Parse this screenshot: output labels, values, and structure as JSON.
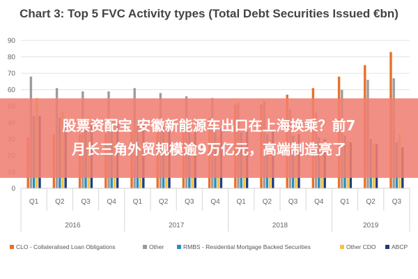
{
  "chart_data": {
    "type": "bar",
    "title": "Chart 3: Top 5 FVC Activity types (Total Debt Securities Issued €bn)",
    "ylim": [
      0,
      90
    ],
    "yticks": [
      0,
      10,
      20,
      30,
      40,
      50,
      60,
      70,
      80,
      90
    ],
    "grid": true,
    "legend_position": "bottom",
    "categories": [
      "Q1",
      "Q2",
      "Q3",
      "Q4",
      "Q1",
      "Q2",
      "Q3",
      "Q4",
      "Q1",
      "Q2",
      "Q3",
      "Q4",
      "Q1",
      "Q2",
      "Q3"
    ],
    "groups": [
      {
        "label": "2016",
        "start": 0,
        "count": 4
      },
      {
        "label": "2017",
        "start": 4,
        "count": 4
      },
      {
        "label": "2018",
        "start": 8,
        "count": 4
      },
      {
        "label": "2019",
        "start": 12,
        "count": 3
      }
    ],
    "series": [
      {
        "name": "CLO - Collateralised Loan Obligations",
        "color": "#e8702a",
        "values": [
          31,
          33,
          33,
          34,
          35,
          37,
          40,
          43,
          51,
          51,
          57,
          61,
          68,
          75,
          83
        ]
      },
      {
        "name": "Other",
        "color": "#9c9c9c",
        "values": [
          68,
          61,
          59,
          59,
          61,
          58,
          56,
          55,
          52,
          53,
          48,
          46,
          60,
          66,
          67
        ]
      },
      {
        "name": "RMBS - Residential Mortgage Backed Securities",
        "color": "#2b8cbe",
        "values": [
          44,
          43,
          41,
          40,
          38,
          37,
          36,
          35,
          34,
          33,
          32,
          31,
          32,
          30,
          28
        ]
      },
      {
        "name": "Other CDO",
        "color": "#f5c242",
        "values": [
          55,
          47,
          44,
          42,
          37,
          36,
          33,
          32,
          30,
          30,
          29,
          28,
          29,
          27,
          33
        ]
      },
      {
        "name": "ABCP",
        "color": "#1f3d7a",
        "values": [
          44,
          42,
          40,
          40,
          39,
          38,
          37,
          37,
          36,
          35,
          33,
          30,
          28,
          27,
          25
        ]
      }
    ]
  },
  "overlay": {
    "line1": "股票资配宝 安徽新能源车出口在上海换乘？前7",
    "line2": "月长三角外贸规模逾9万亿元，高端制造亮了"
  }
}
